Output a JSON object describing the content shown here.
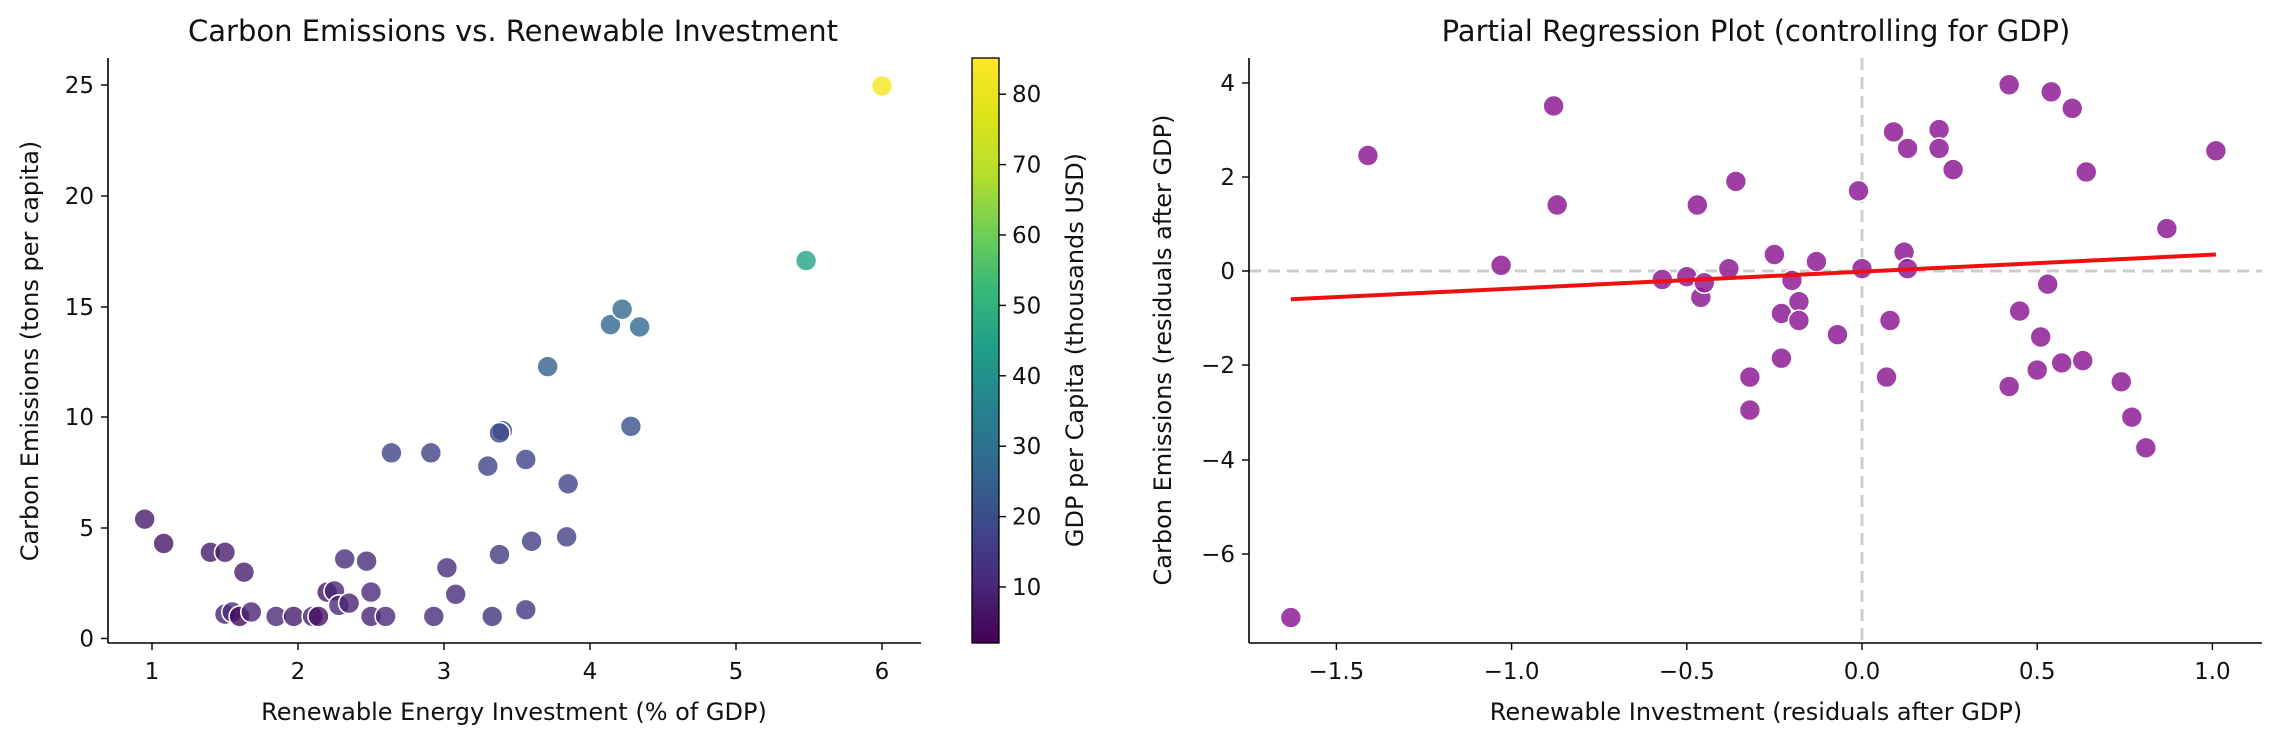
{
  "chart_data": [
    {
      "type": "scatter",
      "title": "Carbon Emissions vs. Renewable Investment",
      "xlabel": "Renewable Energy Investment (% of GDP)",
      "ylabel": "Carbon Emissions (tons per capita)",
      "xlim": [
        0.75,
        6.25
      ],
      "ylim": [
        -0.3,
        26.2
      ],
      "xticks": [
        "1",
        "2",
        "3",
        "4",
        "5",
        "6"
      ],
      "yticks": [
        "0",
        "5",
        "10",
        "15",
        "20",
        "25"
      ],
      "grid": false,
      "colorbar": {
        "label": "GDP per Capita (thousands USD)",
        "colormap": "viridis",
        "range": [
          1.5,
          85
        ],
        "ticks": [
          "10",
          "20",
          "30",
          "40",
          "50",
          "60",
          "70",
          "80"
        ]
      },
      "points": [
        {
          "x": 0.95,
          "y": 5.4,
          "gdp": 7
        },
        {
          "x": 1.08,
          "y": 4.3,
          "gdp": 6
        },
        {
          "x": 1.4,
          "y": 3.9,
          "gdp": 7
        },
        {
          "x": 1.5,
          "y": 3.9,
          "gdp": 8
        },
        {
          "x": 1.5,
          "y": 1.1,
          "gdp": 9
        },
        {
          "x": 1.55,
          "y": 1.2,
          "gdp": 12
        },
        {
          "x": 1.6,
          "y": 1.0,
          "gdp": 4
        },
        {
          "x": 1.63,
          "y": 3.0,
          "gdp": 8
        },
        {
          "x": 1.68,
          "y": 1.2,
          "gdp": 9
        },
        {
          "x": 1.85,
          "y": 1.0,
          "gdp": 10
        },
        {
          "x": 1.97,
          "y": 1.0,
          "gdp": 7
        },
        {
          "x": 2.1,
          "y": 1.0,
          "gdp": 8
        },
        {
          "x": 2.14,
          "y": 1.0,
          "gdp": 5
        },
        {
          "x": 2.2,
          "y": 2.1,
          "gdp": 6
        },
        {
          "x": 2.25,
          "y": 2.15,
          "gdp": 9
        },
        {
          "x": 2.28,
          "y": 1.5,
          "gdp": 10
        },
        {
          "x": 2.32,
          "y": 3.6,
          "gdp": 11
        },
        {
          "x": 2.35,
          "y": 1.6,
          "gdp": 9
        },
        {
          "x": 2.47,
          "y": 3.5,
          "gdp": 11
        },
        {
          "x": 2.5,
          "y": 2.1,
          "gdp": 10
        },
        {
          "x": 2.5,
          "y": 1.0,
          "gdp": 9
        },
        {
          "x": 2.6,
          "y": 1.0,
          "gdp": 10
        },
        {
          "x": 2.64,
          "y": 8.4,
          "gdp": 17
        },
        {
          "x": 2.91,
          "y": 8.4,
          "gdp": 16
        },
        {
          "x": 2.93,
          "y": 1.0,
          "gdp": 11
        },
        {
          "x": 3.02,
          "y": 3.2,
          "gdp": 12
        },
        {
          "x": 3.08,
          "y": 2.0,
          "gdp": 11
        },
        {
          "x": 3.3,
          "y": 7.8,
          "gdp": 17
        },
        {
          "x": 3.33,
          "y": 1.0,
          "gdp": 13
        },
        {
          "x": 3.38,
          "y": 3.8,
          "gdp": 15
        },
        {
          "x": 3.4,
          "y": 9.4,
          "gdp": 20
        },
        {
          "x": 3.38,
          "y": 9.3,
          "gdp": 18
        },
        {
          "x": 3.56,
          "y": 1.3,
          "gdp": 14
        },
        {
          "x": 3.56,
          "y": 8.1,
          "gdp": 17
        },
        {
          "x": 3.6,
          "y": 4.4,
          "gdp": 16
        },
        {
          "x": 3.71,
          "y": 12.3,
          "gdp": 24
        },
        {
          "x": 3.84,
          "y": 4.6,
          "gdp": 16
        },
        {
          "x": 3.85,
          "y": 7.0,
          "gdp": 17
        },
        {
          "x": 4.14,
          "y": 14.2,
          "gdp": 26
        },
        {
          "x": 4.22,
          "y": 14.9,
          "gdp": 27
        },
        {
          "x": 4.28,
          "y": 9.6,
          "gdp": 20
        },
        {
          "x": 4.34,
          "y": 14.1,
          "gdp": 27
        },
        {
          "x": 5.48,
          "y": 17.1,
          "gdp": 45
        },
        {
          "x": 6.0,
          "y": 25.0,
          "gdp": 82
        }
      ]
    },
    {
      "type": "scatter",
      "title": "Partial Regression Plot (controlling for GDP)",
      "xlabel": "Renewable Investment (residuals after GDP)",
      "ylabel": "Carbon Emissions (residuals after GDP)",
      "xlim": [
        -1.75,
        1.14
      ],
      "ylim": [
        -7.9,
        4.5
      ],
      "xticks": [
        "−1.5",
        "−1.0",
        "−0.5",
        "0.0",
        "0.5",
        "1.0"
      ],
      "yticks": [
        "−6",
        "−4",
        "−2",
        "0",
        "2",
        "4"
      ],
      "grid": false,
      "reference_lines": {
        "x": 0,
        "y": 0
      },
      "point_color": "#8e1d96",
      "line_color": "#ef1010",
      "fit_line": {
        "x": [
          -1.63,
          1.01
        ],
        "y": [
          -0.6,
          0.35
        ]
      },
      "points": [
        {
          "x": -1.63,
          "y": -7.35
        },
        {
          "x": -1.41,
          "y": 2.45
        },
        {
          "x": -1.03,
          "y": 0.12
        },
        {
          "x": -0.88,
          "y": 3.5
        },
        {
          "x": -0.87,
          "y": 1.4
        },
        {
          "x": -0.57,
          "y": -0.18
        },
        {
          "x": -0.5,
          "y": -0.12
        },
        {
          "x": -0.47,
          "y": 1.4
        },
        {
          "x": -0.46,
          "y": -0.56
        },
        {
          "x": -0.45,
          "y": -0.25
        },
        {
          "x": -0.38,
          "y": 0.05
        },
        {
          "x": -0.36,
          "y": 1.9
        },
        {
          "x": -0.32,
          "y": -2.25
        },
        {
          "x": -0.32,
          "y": -2.95
        },
        {
          "x": -0.25,
          "y": 0.35
        },
        {
          "x": -0.23,
          "y": -0.9
        },
        {
          "x": -0.23,
          "y": -1.85
        },
        {
          "x": -0.2,
          "y": -0.2
        },
        {
          "x": -0.18,
          "y": -0.65
        },
        {
          "x": -0.18,
          "y": -1.05
        },
        {
          "x": -0.13,
          "y": 0.2
        },
        {
          "x": -0.07,
          "y": -1.35
        },
        {
          "x": -0.01,
          "y": 1.7
        },
        {
          "x": 0.0,
          "y": 0.05
        },
        {
          "x": 0.07,
          "y": -2.25
        },
        {
          "x": 0.08,
          "y": -1.05
        },
        {
          "x": 0.09,
          "y": 2.95
        },
        {
          "x": 0.12,
          "y": 0.4
        },
        {
          "x": 0.13,
          "y": 0.05
        },
        {
          "x": 0.13,
          "y": 2.6
        },
        {
          "x": 0.22,
          "y": 3.0
        },
        {
          "x": 0.22,
          "y": 2.6
        },
        {
          "x": 0.26,
          "y": 2.15
        },
        {
          "x": 0.42,
          "y": 3.95
        },
        {
          "x": 0.42,
          "y": -2.45
        },
        {
          "x": 0.45,
          "y": -0.85
        },
        {
          "x": 0.5,
          "y": -2.1
        },
        {
          "x": 0.51,
          "y": -1.4
        },
        {
          "x": 0.53,
          "y": -0.28
        },
        {
          "x": 0.54,
          "y": 3.8
        },
        {
          "x": 0.57,
          "y": -1.95
        },
        {
          "x": 0.6,
          "y": 3.45
        },
        {
          "x": 0.63,
          "y": -1.9
        },
        {
          "x": 0.64,
          "y": 2.1
        },
        {
          "x": 0.74,
          "y": -2.35
        },
        {
          "x": 0.77,
          "y": -3.1
        },
        {
          "x": 0.81,
          "y": -3.75
        },
        {
          "x": 0.87,
          "y": 0.9
        },
        {
          "x": 1.01,
          "y": 2.55
        }
      ]
    }
  ]
}
